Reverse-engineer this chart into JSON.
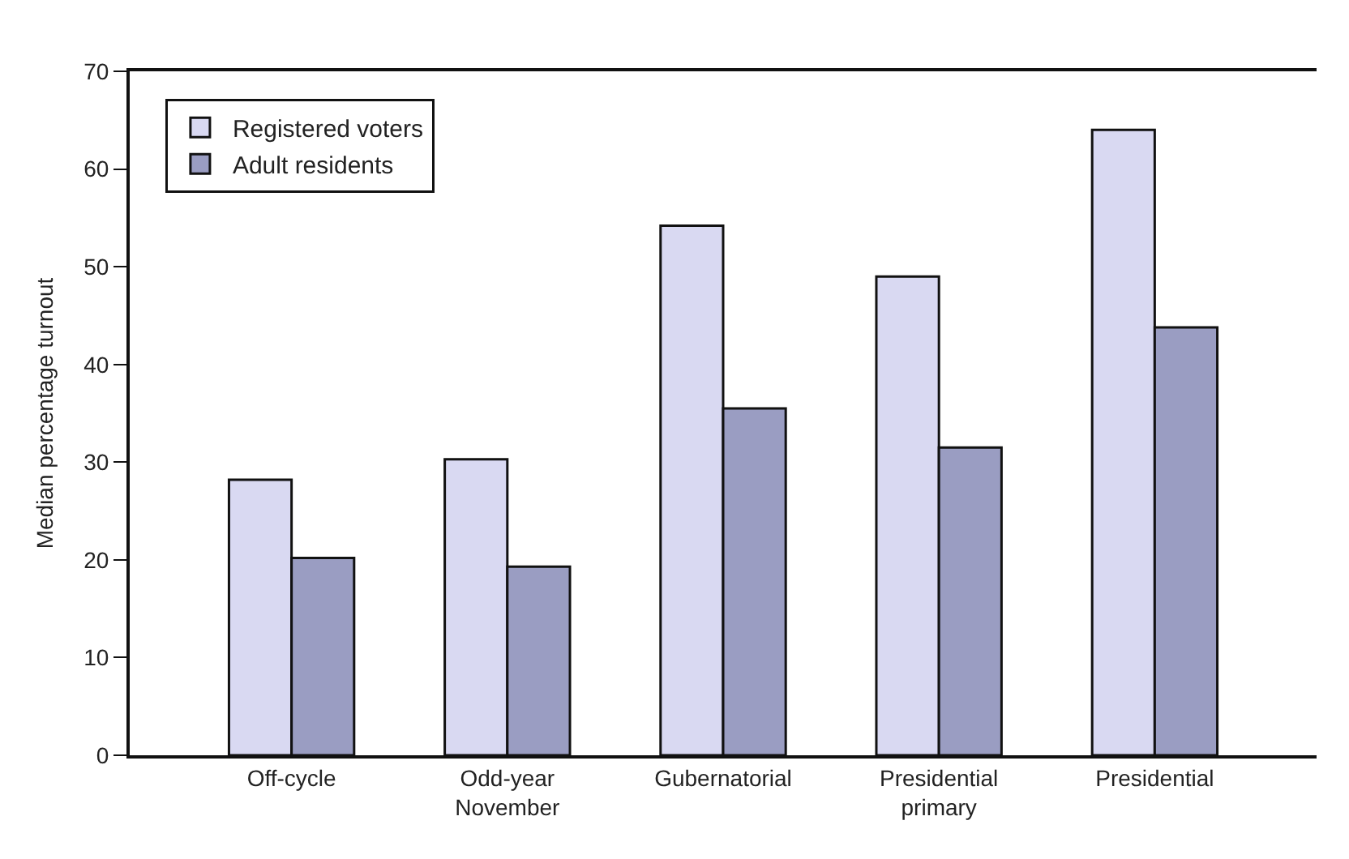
{
  "chart_data": {
    "type": "bar",
    "ylabel": "Median percentage turnout",
    "categories": [
      "Off-cycle",
      "Odd-year\nNovember",
      "Gubernatorial",
      "Presidential\nprimary",
      "Presidential"
    ],
    "series": [
      {
        "name": "Registered voters",
        "color": "#d9d9f2",
        "values": [
          28.2,
          30.3,
          54.2,
          49.0,
          64.0
        ]
      },
      {
        "name": "Adult residents",
        "color": "#9a9dc2",
        "values": [
          20.2,
          19.3,
          35.5,
          31.5,
          43.8
        ]
      }
    ],
    "ylim": [
      0,
      70
    ],
    "yticks": [
      0,
      10,
      20,
      30,
      40,
      50,
      60,
      70
    ],
    "legend": "top left"
  }
}
